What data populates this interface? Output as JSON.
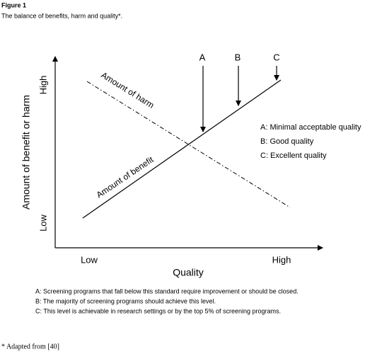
{
  "figure": {
    "label": "Figure 1",
    "caption": "The balance of benefits, harm and quality*."
  },
  "axes": {
    "y_label": "Amount of benefit or harm",
    "y_high": "High",
    "y_low": "Low",
    "x_label": "Quality",
    "x_low": "Low",
    "x_high": "High"
  },
  "lines": [
    {
      "label": "Amount of benefit"
    },
    {
      "label": "Amount of harm"
    }
  ],
  "markers": [
    {
      "label": "A"
    },
    {
      "label": "B"
    },
    {
      "label": "C"
    }
  ],
  "legend": [
    "A: Minimal acceptable quality",
    "B: Good quality",
    "C: Excellent quality"
  ],
  "notes": [
    "A: Screening programs that fall below this standard require improvement or should be closed.",
    "B: The majority of screening programs should achieve this level.",
    "C: This level is achievable in research settings or by the top 5% of screening programs."
  ],
  "footnote": "* Adapted from [40]"
}
